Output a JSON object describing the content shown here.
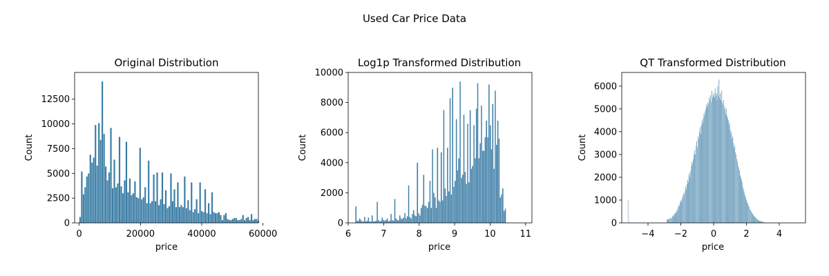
{
  "figure": {
    "suptitle": "Used Car Price Data",
    "bar_color": "#3a7ca5",
    "bar_edge_color": "#ffffff"
  },
  "chart_data": [
    {
      "type": "bar",
      "title": "Original Distribution",
      "xlabel": "price",
      "ylabel": "Count",
      "xlim": [
        -1500,
        58500
      ],
      "ylim": [
        0,
        15200
      ],
      "xticks": [
        0,
        20000,
        40000,
        60000
      ],
      "yticks": [
        0,
        2500,
        5000,
        7500,
        10000,
        12500
      ],
      "grid": false,
      "bin_start": 0,
      "bin_width": 560,
      "values": [
        600,
        5200,
        2900,
        3600,
        4700,
        5000,
        6900,
        6100,
        6600,
        9900,
        5800,
        10100,
        8400,
        14300,
        9000,
        5700,
        4300,
        5100,
        9600,
        3500,
        6400,
        3600,
        4000,
        8700,
        3700,
        3000,
        4300,
        8200,
        3100,
        4500,
        2800,
        3000,
        4200,
        2600,
        2500,
        7600,
        2400,
        2600,
        3600,
        2000,
        6300,
        2000,
        2200,
        4900,
        2200,
        5100,
        1800,
        2400,
        5100,
        1900,
        3300,
        1500,
        1700,
        5000,
        2200,
        3400,
        1600,
        4100,
        1600,
        1800,
        1600,
        4700,
        1500,
        2300,
        1300,
        4100,
        1100,
        1400,
        2400,
        1000,
        4100,
        1200,
        1100,
        3400,
        1000,
        2000,
        900,
        3100,
        1100,
        1000,
        1000,
        1100,
        800,
        300,
        800,
        1000,
        400,
        300,
        300,
        400,
        500,
        500,
        300,
        300,
        400,
        800,
        300,
        500,
        600,
        300,
        900,
        300,
        400,
        400,
        200
      ]
    },
    {
      "type": "bar",
      "title": "Log1p Transformed Distribution",
      "xlabel": "price",
      "ylabel": "Count",
      "xlim": [
        6.0,
        11.18
      ],
      "ylim": [
        0,
        10000
      ],
      "xticks": [
        6,
        7,
        8,
        9,
        10,
        11
      ],
      "yticks": [
        0,
        2000,
        4000,
        6000,
        8000,
        10000
      ],
      "grid": false,
      "bin_start": 6.2,
      "bin_width": 0.0354,
      "values": [
        1100,
        150,
        150,
        300,
        200,
        100,
        100,
        400,
        100,
        150,
        350,
        100,
        100,
        500,
        100,
        100,
        150,
        1400,
        200,
        100,
        150,
        350,
        200,
        150,
        200,
        300,
        100,
        150,
        600,
        200,
        150,
        1600,
        300,
        200,
        200,
        500,
        300,
        250,
        350,
        650,
        300,
        450,
        2500,
        400,
        300,
        600,
        850,
        500,
        450,
        4000,
        650,
        500,
        1000,
        1200,
        3200,
        1150,
        1100,
        1000,
        1400,
        2800,
        1000,
        4900,
        2000,
        1700,
        1000,
        5000,
        1500,
        1400,
        4700,
        1500,
        7500,
        2300,
        1800,
        5000,
        2100,
        8300,
        1900,
        9000,
        2400,
        2800,
        6900,
        3500,
        4300,
        9400,
        3000,
        3200,
        7200,
        3400,
        2600,
        6600,
        2700,
        7500,
        3600,
        3800,
        6500,
        4300,
        7600,
        9300,
        4300,
        5300,
        7800,
        4800,
        4800,
        5700,
        6800,
        5700,
        9200,
        6500,
        4900,
        7900,
        3600,
        8800,
        5200,
        6800,
        5600,
        1700,
        1900,
        2300,
        800,
        950
      ]
    },
    {
      "type": "bar",
      "title": "QT Transformed Distribution",
      "xlabel": "price",
      "ylabel": "Count",
      "xlim": [
        -5.6,
        5.6
      ],
      "ylim": [
        0,
        6600
      ],
      "xticks": [
        -4,
        -2,
        0,
        2,
        4
      ],
      "yticks": [
        0,
        1000,
        2000,
        3000,
        4000,
        5000,
        6000
      ],
      "grid": false,
      "bin_start": -2.85,
      "bin_width": 0.04,
      "values": [
        150,
        160,
        180,
        140,
        200,
        220,
        180,
        250,
        300,
        350,
        280,
        400,
        450,
        420,
        500,
        600,
        550,
        700,
        800,
        750,
        900,
        1000,
        950,
        1100,
        1200,
        1300,
        1250,
        1400,
        1600,
        1500,
        1700,
        1900,
        1800,
        2100,
        2200,
        2000,
        2300,
        2500,
        2700,
        2600,
        2800,
        3000,
        3200,
        3000,
        3400,
        3600,
        3300,
        3800,
        3700,
        4000,
        4200,
        3900,
        4300,
        4500,
        4400,
        4600,
        4800,
        4700,
        4900,
        5000,
        5200,
        5100,
        5300,
        5200,
        5500,
        5400,
        5600,
        5300,
        5800,
        5500,
        5600,
        5700,
        5500,
        5900,
        5600,
        5700,
        5400,
        6000,
        5600,
        6300,
        5500,
        5700,
        5400,
        5800,
        5300,
        5200,
        5400,
        5000,
        5100,
        4800,
        5000,
        4700,
        4600,
        4500,
        4300,
        4400,
        4100,
        3900,
        4000,
        3700,
        3800,
        3500,
        3300,
        3400,
        3100,
        3000,
        2800,
        2700,
        2500,
        2400,
        2300,
        2100,
        2000,
        1900,
        1800,
        1600,
        1500,
        1400,
        1300,
        1200,
        1100,
        1000,
        900,
        850,
        750,
        700,
        600,
        550,
        500,
        450,
        400,
        350,
        300,
        280,
        250,
        220,
        200,
        180,
        150,
        130,
        110,
        100,
        90,
        80,
        70,
        60,
        50,
        40,
        30,
        20,
        15,
        10
      ],
      "outlier_bins": [
        {
          "x": -5.2,
          "count": 1000
        }
      ]
    }
  ]
}
